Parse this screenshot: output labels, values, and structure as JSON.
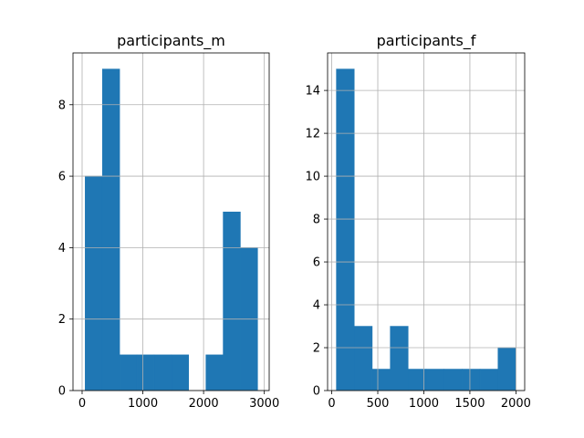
{
  "chart_data": [
    {
      "type": "bar",
      "title": "participants_m",
      "bins": [
        {
          "x0": 50,
          "x1": 334,
          "count": 6
        },
        {
          "x0": 334,
          "x1": 618,
          "count": 9
        },
        {
          "x0": 618,
          "x1": 902,
          "count": 1
        },
        {
          "x0": 902,
          "x1": 1186,
          "count": 1
        },
        {
          "x0": 1186,
          "x1": 1470,
          "count": 1
        },
        {
          "x0": 1470,
          "x1": 1754,
          "count": 1
        },
        {
          "x0": 1754,
          "x1": 2038,
          "count": 0
        },
        {
          "x0": 2038,
          "x1": 2322,
          "count": 1
        },
        {
          "x0": 2322,
          "x1": 2606,
          "count": 5
        },
        {
          "x0": 2606,
          "x1": 2890,
          "count": 4
        }
      ],
      "xlim": [
        -150,
        3080
      ],
      "ylim": [
        0,
        9.45
      ],
      "xticks": [
        0,
        1000,
        2000,
        3000
      ],
      "xtick_labels": [
        "0",
        "1000",
        "2000",
        "3000"
      ],
      "yticks": [
        0,
        2,
        4,
        6,
        8
      ],
      "ytick_labels": [
        "0",
        "2",
        "4",
        "6",
        "8"
      ],
      "grid": true,
      "color": "#1f77b4"
    },
    {
      "type": "bar",
      "title": "participants_f",
      "bins": [
        {
          "x0": 50,
          "x1": 245,
          "count": 15
        },
        {
          "x0": 245,
          "x1": 440,
          "count": 3
        },
        {
          "x0": 440,
          "x1": 635,
          "count": 1
        },
        {
          "x0": 635,
          "x1": 830,
          "count": 3
        },
        {
          "x0": 830,
          "x1": 1025,
          "count": 1
        },
        {
          "x0": 1025,
          "x1": 1220,
          "count": 1
        },
        {
          "x0": 1220,
          "x1": 1415,
          "count": 1
        },
        {
          "x0": 1415,
          "x1": 1610,
          "count": 1
        },
        {
          "x0": 1610,
          "x1": 1805,
          "count": 1
        },
        {
          "x0": 1805,
          "x1": 2000,
          "count": 2
        }
      ],
      "xlim": [
        -45,
        2095
      ],
      "ylim": [
        0,
        15.75
      ],
      "xticks": [
        0,
        500,
        1000,
        1500,
        2000
      ],
      "xtick_labels": [
        "0",
        "500",
        "1000",
        "1500",
        "2000"
      ],
      "yticks": [
        0,
        2,
        4,
        6,
        8,
        10,
        12,
        14
      ],
      "ytick_labels": [
        "0",
        "2",
        "4",
        "6",
        "8",
        "10",
        "12",
        "14"
      ],
      "grid": true,
      "color": "#1f77b4"
    }
  ]
}
